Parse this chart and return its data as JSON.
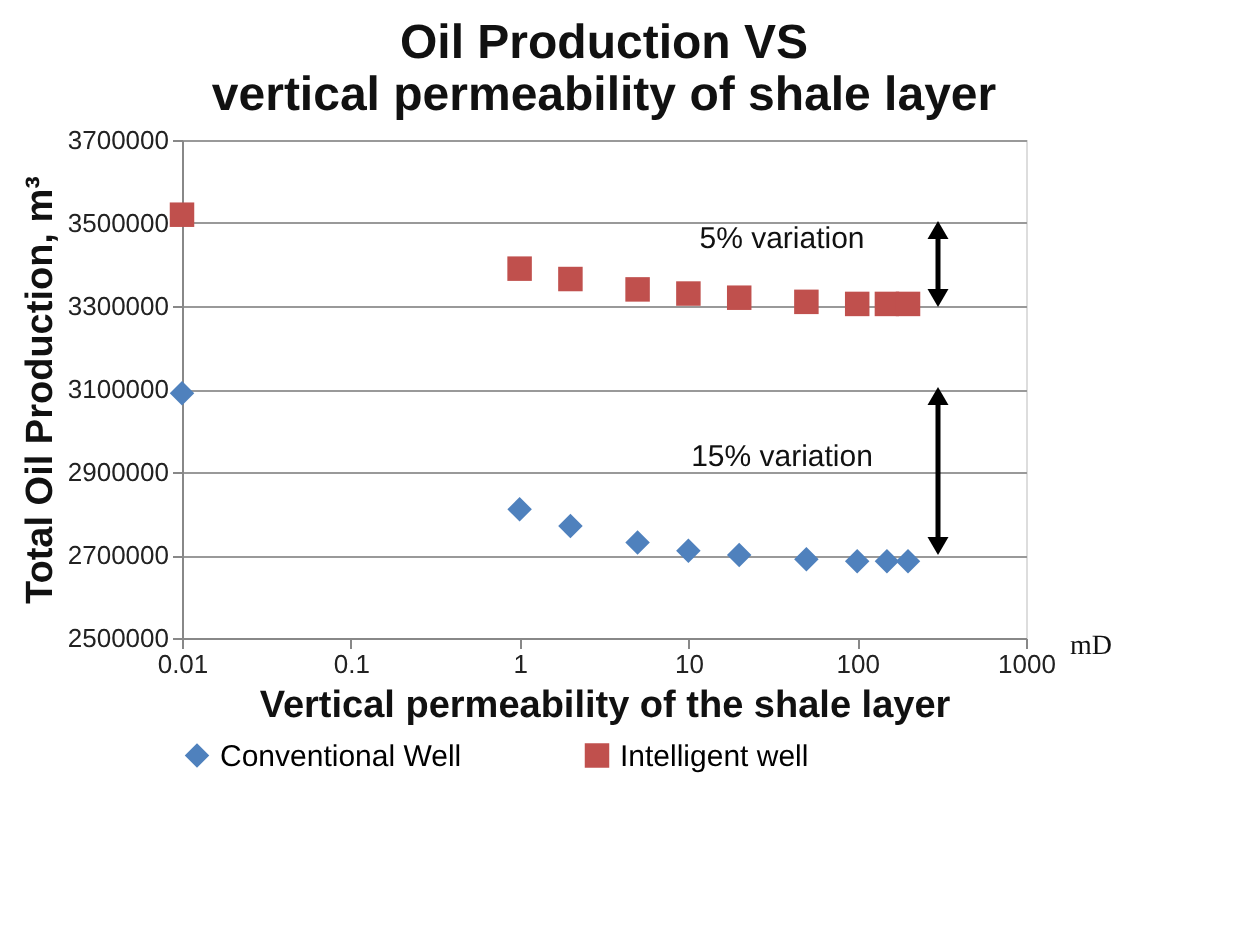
{
  "chart_data": {
    "type": "scatter",
    "title": "Oil Production VS vertical permeability of shale layer",
    "xlabel": "Vertical permeability of the shale layer",
    "ylabel": "Total Oil Production, m³",
    "x": [
      0.01,
      1,
      2,
      5,
      10,
      20,
      50,
      100,
      150,
      200
    ],
    "series": [
      {
        "name": "Conventional Well",
        "color": "#4f81bd",
        "marker": "diamond",
        "values": [
          3090000,
          2810000,
          2770000,
          2730000,
          2710000,
          2700000,
          2690000,
          2685000,
          2685000,
          2685000
        ]
      },
      {
        "name": "Intelligent well",
        "color": "#c0504d",
        "marker": "square",
        "values": [
          3520000,
          3390000,
          3365000,
          3340000,
          3330000,
          3320000,
          3310000,
          3305000,
          3305000,
          3305000
        ]
      }
    ],
    "log": "x",
    "xlim": [
      0.01,
      1000
    ],
    "xticks": [
      0.01,
      0.1,
      1,
      10,
      100,
      1000
    ],
    "ylim": [
      2500000,
      3700000
    ],
    "yticks": [
      2500000,
      2700000,
      2900000,
      3100000,
      3300000,
      3500000,
      3700000
    ],
    "grid": "y",
    "legend": "bottom",
    "annotations": [
      "5% variation",
      "15% variation",
      "mD"
    ]
  }
}
